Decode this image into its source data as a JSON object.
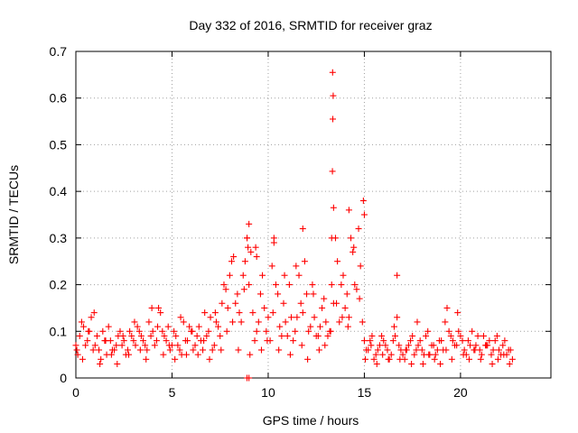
{
  "chart_data": {
    "type": "scatter",
    "title": "Day 332 of 2016, SRMTID for receiver graz",
    "xlabel": "GPS time / hours",
    "ylabel": "SRMTID / TECUs",
    "xlim": [
      0,
      24.7
    ],
    "ylim": [
      0,
      0.7
    ],
    "xticks": [
      0,
      5,
      10,
      15,
      20
    ],
    "yticks": [
      0,
      0.1,
      0.2,
      0.3,
      0.4,
      0.5,
      0.6,
      0.7
    ],
    "xtick_labels": [
      "0",
      "5",
      "10",
      "15",
      "20"
    ],
    "ytick_labels": [
      "0",
      "0.1",
      "0.2",
      "0.3",
      "0.4",
      "0.5",
      "0.6",
      "0.7"
    ],
    "grid": true,
    "marker": "+",
    "color": "#ff0000",
    "series": [
      {
        "name": "SRMTID",
        "x": [
          0.0,
          0.2,
          0.4,
          0.6,
          0.8,
          1.0,
          1.2,
          1.4,
          1.6,
          1.8,
          2.0,
          2.2,
          2.4,
          2.6,
          2.8,
          3.0,
          3.2,
          3.4,
          3.6,
          3.8,
          4.0,
          4.2,
          4.4,
          4.6,
          4.8,
          5.0,
          5.2,
          5.4,
          5.6,
          5.8,
          6.0,
          6.2,
          6.4,
          6.6,
          6.8,
          7.0,
          7.2,
          7.4,
          7.6,
          7.8,
          8.0,
          8.2,
          8.4,
          8.6,
          8.8,
          9.0,
          9.2,
          9.4,
          9.6,
          9.8,
          10.0,
          10.2,
          10.4,
          10.6,
          10.8,
          11.0,
          11.2,
          11.4,
          11.6,
          11.8,
          12.0,
          12.2,
          12.4,
          12.6,
          12.8,
          13.0,
          13.2,
          13.4,
          13.6,
          13.8,
          14.0,
          14.2,
          14.4,
          14.6,
          14.8,
          15.0,
          15.2,
          15.4,
          15.6,
          15.8,
          16.0,
          16.2,
          16.4,
          16.6,
          16.8,
          17.0,
          17.2,
          17.4,
          17.6,
          17.8,
          18.0,
          18.2,
          18.4,
          18.6,
          18.8,
          19.0,
          19.2,
          19.4,
          19.6,
          19.8,
          20.0,
          20.2,
          20.4,
          20.6,
          20.8,
          21.0,
          21.2,
          21.4,
          21.6,
          21.8,
          22.0,
          22.2,
          22.4,
          22.6,
          0.1,
          0.3,
          0.5,
          0.7,
          0.9,
          1.1,
          1.3,
          1.5,
          1.7,
          1.9,
          2.1,
          2.3,
          2.5,
          2.7,
          2.9,
          3.1,
          3.3,
          3.5,
          3.7,
          3.9,
          4.1,
          4.3,
          4.5,
          4.7,
          4.9,
          5.1,
          5.3,
          5.5,
          5.7,
          5.9,
          6.1,
          6.3,
          6.5,
          6.7,
          6.9,
          7.1,
          7.3,
          7.5,
          7.7,
          7.9,
          8.1,
          8.3,
          8.5,
          8.7,
          8.9,
          9.1,
          9.3,
          9.5,
          9.7,
          9.9,
          10.1,
          10.3,
          10.5,
          10.7,
          10.9,
          11.1,
          11.3,
          11.5,
          11.7,
          11.9,
          12.1,
          12.3,
          12.5,
          12.7,
          12.9,
          13.1,
          13.3,
          13.5,
          13.7,
          13.9,
          14.1,
          14.3,
          14.5,
          14.7,
          14.9,
          15.1,
          15.3,
          15.5,
          15.7,
          15.9,
          16.1,
          16.3,
          16.5,
          16.7,
          16.9,
          17.1,
          17.3,
          17.5,
          17.7,
          17.9,
          18.1,
          18.3,
          18.5,
          18.7,
          18.9,
          19.1,
          19.3,
          19.5,
          19.7,
          19.9,
          20.1,
          20.3,
          20.5,
          20.7,
          20.9,
          21.1,
          21.3,
          21.5,
          21.7,
          21.9,
          22.1,
          22.3,
          22.5,
          22.7,
          0.05,
          0.35,
          0.65,
          0.95,
          1.25,
          1.55,
          1.85,
          2.15,
          2.45,
          2.75,
          3.05,
          3.35,
          3.65,
          3.95,
          4.25,
          4.55,
          4.85,
          5.15,
          5.45,
          5.75,
          6.05,
          6.35,
          6.65,
          6.95,
          7.25,
          7.55,
          7.85,
          8.15,
          8.45,
          8.75,
          9.05,
          9.35,
          9.65,
          9.95,
          10.25,
          10.55,
          10.85,
          11.15,
          11.45,
          11.75,
          12.05,
          12.35,
          12.65,
          12.95,
          13.25,
          13.55,
          13.85,
          14.15,
          14.45,
          14.75,
          15.05,
          15.35,
          15.65,
          15.95,
          16.25,
          16.55,
          16.85,
          17.15,
          17.45,
          17.75,
          18.05,
          18.35,
          18.65,
          18.95,
          19.25,
          19.55,
          19.85,
          20.15,
          20.45,
          20.75,
          21.05,
          21.35,
          21.65,
          21.95,
          22.25,
          22.55,
          8.9,
          9.0,
          8.95,
          9.4,
          9.0,
          8.9,
          13.35,
          13.38,
          13.36,
          13.34,
          13.4,
          14.95,
          15.0,
          13.3,
          14.2,
          10.3,
          11.8,
          16.7
        ],
        "y": [
          0.07,
          0.09,
          0.11,
          0.08,
          0.13,
          0.07,
          0.06,
          0.1,
          0.05,
          0.08,
          0.06,
          0.09,
          0.07,
          0.05,
          0.1,
          0.08,
          0.11,
          0.09,
          0.07,
          0.12,
          0.1,
          0.08,
          0.14,
          0.09,
          0.11,
          0.07,
          0.09,
          0.06,
          0.12,
          0.08,
          0.1,
          0.07,
          0.11,
          0.06,
          0.09,
          0.13,
          0.07,
          0.11,
          0.16,
          0.19,
          0.22,
          0.26,
          0.18,
          0.12,
          0.25,
          0.2,
          0.14,
          0.1,
          0.18,
          0.15,
          0.13,
          0.24,
          0.2,
          0.11,
          0.16,
          0.09,
          0.13,
          0.1,
          0.22,
          0.14,
          0.18,
          0.11,
          0.13,
          0.09,
          0.15,
          0.12,
          0.1,
          0.16,
          0.25,
          0.2,
          0.15,
          0.13,
          0.27,
          0.19,
          0.24,
          0.08,
          0.06,
          0.09,
          0.05,
          0.07,
          0.08,
          0.06,
          0.05,
          0.09,
          0.07,
          0.05,
          0.06,
          0.08,
          0.05,
          0.07,
          0.06,
          0.09,
          0.05,
          0.07,
          0.06,
          0.08,
          0.12,
          0.1,
          0.08,
          0.07,
          0.09,
          0.06,
          0.08,
          0.1,
          0.07,
          0.06,
          0.09,
          0.07,
          0.05,
          0.08,
          0.06,
          0.07,
          0.05,
          0.06,
          0.05,
          0.12,
          0.07,
          0.1,
          0.06,
          0.09,
          0.04,
          0.08,
          0.11,
          0.06,
          0.07,
          0.1,
          0.08,
          0.06,
          0.09,
          0.07,
          0.1,
          0.08,
          0.06,
          0.09,
          0.07,
          0.15,
          0.1,
          0.08,
          0.06,
          0.1,
          0.07,
          0.05,
          0.08,
          0.11,
          0.06,
          0.09,
          0.08,
          0.14,
          0.1,
          0.06,
          0.12,
          0.09,
          0.2,
          0.15,
          0.25,
          0.16,
          0.14,
          0.22,
          0.3,
          0.27,
          0.08,
          0.12,
          0.22,
          0.1,
          0.08,
          0.29,
          0.18,
          0.09,
          0.12,
          0.2,
          0.08,
          0.13,
          0.16,
          0.25,
          0.1,
          0.2,
          0.09,
          0.11,
          0.17,
          0.09,
          0.2,
          0.3,
          0.12,
          0.22,
          0.18,
          0.3,
          0.2,
          0.32,
          0.12,
          0.06,
          0.08,
          0.04,
          0.06,
          0.09,
          0.07,
          0.04,
          0.08,
          0.13,
          0.06,
          0.04,
          0.07,
          0.09,
          0.06,
          0.08,
          0.05,
          0.1,
          0.07,
          0.05,
          0.08,
          0.06,
          0.15,
          0.09,
          0.07,
          0.1,
          0.08,
          0.05,
          0.07,
          0.06,
          0.09,
          0.05,
          0.07,
          0.08,
          0.06,
          0.09,
          0.05,
          0.08,
          0.06,
          0.04,
          0.06,
          0.04,
          0.1,
          0.14,
          0.03,
          0.08,
          0.05,
          0.03,
          0.09,
          0.05,
          0.12,
          0.06,
          0.04,
          0.15,
          0.11,
          0.05,
          0.07,
          0.04,
          0.13,
          0.05,
          0.1,
          0.05,
          0.08,
          0.04,
          0.14,
          0.06,
          0.1,
          0.12,
          0.06,
          0.19,
          0.05,
          0.28,
          0.06,
          0.08,
          0.14,
          0.06,
          0.22,
          0.05,
          0.24,
          0.07,
          0.04,
          0.18,
          0.06,
          0.07,
          0.1,
          0.16,
          0.13,
          0.11,
          0.28,
          0.17,
          0.04,
          0.07,
          0.03,
          0.05,
          0.04,
          0.11,
          0.04,
          0.06,
          0.03,
          0.12,
          0.03,
          0.05,
          0.04,
          0.03,
          0.06,
          0.04,
          0.14,
          0.05,
          0.04,
          0.06,
          0.04,
          0.07,
          0.03,
          0.04,
          0.05,
          0.03,
          0.3,
          0.33,
          0.28,
          0.26,
          0.0,
          0.0,
          0.655,
          0.605,
          0.555,
          0.443,
          0.365,
          0.38,
          0.35,
          0.3,
          0.36,
          0.3,
          0.32,
          0.22
        ]
      }
    ]
  }
}
